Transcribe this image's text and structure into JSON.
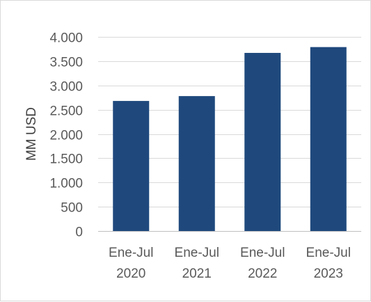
{
  "chart_data": {
    "type": "bar",
    "title": "",
    "xlabel": "",
    "ylabel": "MM USD",
    "categories": [
      [
        "Ene-Jul",
        "2020"
      ],
      [
        "Ene-Jul",
        "2021"
      ],
      [
        "Ene-Jul",
        "2022"
      ],
      [
        "Ene-Jul",
        "2023"
      ]
    ],
    "values": [
      2680,
      2780,
      3670,
      3790
    ],
    "ylim": [
      0,
      4000
    ],
    "yticks": [
      0,
      500,
      1000,
      1500,
      2000,
      2500,
      3000,
      3500,
      4000
    ],
    "ytick_labels": [
      "0",
      "500",
      "1.000",
      "1.500",
      "2.000",
      "2.500",
      "3.000",
      "3.500",
      "4.000"
    ],
    "grid": true,
    "legend": "none",
    "colors": {
      "bar": "#1f497d"
    }
  }
}
